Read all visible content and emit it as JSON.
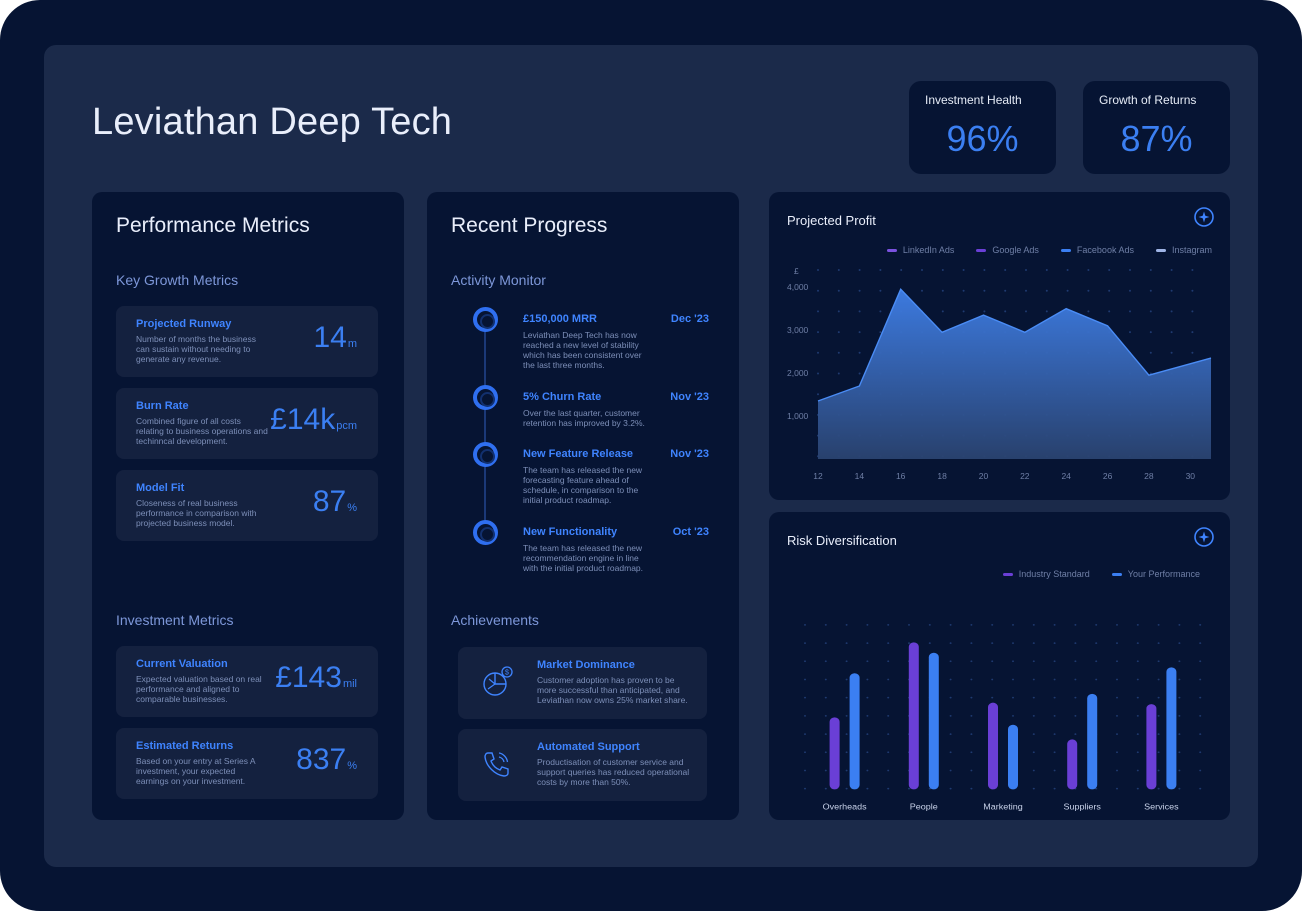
{
  "app": {
    "title": "Leviathan Deep Tech"
  },
  "kpis": [
    {
      "label": "Investment Health",
      "value": "96%"
    },
    {
      "label": "Growth of Returns",
      "value": "87%"
    }
  ],
  "performance": {
    "title": "Performance Metrics",
    "key_growth_label": "Key Growth Metrics",
    "key_growth": [
      {
        "title": "Projected Runway",
        "desc": "Number of months the business can sustain without needing to generate any revenue.",
        "value": "14",
        "unit": "m"
      },
      {
        "title": "Burn Rate",
        "desc": "Combined figure of all costs relating to business operations and techinncal development.",
        "value": "£14k",
        "unit": "pcm"
      },
      {
        "title": "Model Fit",
        "desc": "Closeness of real business performance in comparison with projected business model.",
        "value": "87",
        "unit": "%"
      }
    ],
    "investment_label": "Investment Metrics",
    "investment": [
      {
        "title": "Current Valuation",
        "desc": "Expected valuation based on real performance and aligned to comparable businesses.",
        "value": "£143",
        "unit": "mil"
      },
      {
        "title": "Estimated Returns",
        "desc": "Based on your entry at Series A investment, your expected earnings on your investment.",
        "value": "837",
        "unit": "%"
      }
    ]
  },
  "progress": {
    "title": "Recent Progress",
    "activity_label": "Activity Monitor",
    "events": [
      {
        "title": "£150,000 MRR",
        "date": "Dec '23",
        "desc": "Leviathan Deep Tech has now reached a new level of stability which has been consistent over the last three months."
      },
      {
        "title": "5% Churn Rate",
        "date": "Nov '23",
        "desc": "Over the last quarter, customer retention has improved by 3.2%."
      },
      {
        "title": "New Feature Release",
        "date": "Nov '23",
        "desc": "The team has released the new forecasting feature ahead of schedule, in comparison to the initial product roadmap."
      },
      {
        "title": "New Functionality",
        "date": "Oct '23",
        "desc": "The team has released the new recommendation engine in line with the initial product roadmap."
      }
    ],
    "achievements_label": "Achievements",
    "achievements": [
      {
        "title": "Market Dominance",
        "desc": "Customer adoption has proven to be more successful than anticipated, and Leviathan now owns 25% market share.",
        "icon": "pie-chart-dollar-icon"
      },
      {
        "title": "Automated Support",
        "desc": "Productisation of customer service and support queries has reduced operational costs by more than 50%.",
        "icon": "phone-icon"
      }
    ]
  },
  "colors": {
    "accent": "#3b7ff2",
    "purple": "#6a3fd6",
    "panel": "#061433",
    "card": "#14213f"
  },
  "chart_data": [
    {
      "type": "area",
      "title": "Projected Profit",
      "legend": [
        "LinkedIn Ads",
        "Google Ads",
        "Facebook Ads",
        "Instagram"
      ],
      "legend_colors": [
        "#7b52e0",
        "#6a3fd6",
        "#3b7ff2",
        "#9fb4e6"
      ],
      "y_unit": "£",
      "y_ticks": [
        "4,000",
        "3,000",
        "2,000",
        "1,000"
      ],
      "x_ticks": [
        "12",
        "14",
        "16",
        "18",
        "20",
        "22",
        "24",
        "26",
        "28",
        "30"
      ],
      "ylim": [
        0,
        4400
      ],
      "xlim": [
        12,
        31
      ],
      "points": [
        {
          "x": 12,
          "y": 1350
        },
        {
          "x": 14,
          "y": 1700
        },
        {
          "x": 16,
          "y": 3950
        },
        {
          "x": 18,
          "y": 2950
        },
        {
          "x": 20,
          "y": 3350
        },
        {
          "x": 22,
          "y": 2950
        },
        {
          "x": 24,
          "y": 3500
        },
        {
          "x": 26,
          "y": 3100
        },
        {
          "x": 28,
          "y": 1950
        },
        {
          "x": 31,
          "y": 2350
        }
      ],
      "grid": "dotted",
      "legend_position": "top-right"
    },
    {
      "type": "bar",
      "title": "Risk Diversification",
      "categories": [
        "Overheads",
        "People",
        "Marketing",
        "Suppliers",
        "Services"
      ],
      "series": [
        {
          "name": "Industry Standard",
          "color": "#6a3fd6",
          "values": [
            49,
            100,
            59,
            34,
            58
          ]
        },
        {
          "name": "Your Performance",
          "color": "#3b7ff2",
          "values": [
            79,
            93,
            44,
            65,
            83
          ]
        }
      ],
      "ylim": [
        0,
        100
      ],
      "grid": "dotted",
      "legend_position": "top-right"
    }
  ]
}
